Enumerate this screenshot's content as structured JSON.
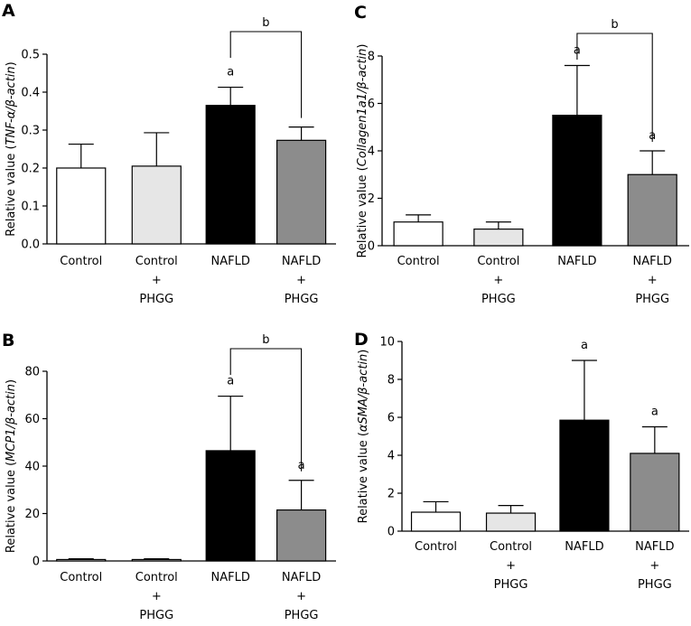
{
  "chart_data": [
    {
      "panel": "A",
      "type": "bar",
      "categories": [
        [
          "Control"
        ],
        [
          "Control",
          "+",
          "PHGG"
        ],
        [
          "NAFLD"
        ],
        [
          "NAFLD",
          "+",
          "PHGG"
        ]
      ],
      "values": [
        0.2,
        0.205,
        0.365,
        0.273
      ],
      "errors": [
        0.063,
        0.088,
        0.048,
        0.035
      ],
      "ylabel_prefix": "Relative value (",
      "ylabel_italic": "TNF-α/β-actin",
      "ylabel_suffix": ")",
      "ylim": [
        0,
        0.5
      ],
      "yticks": [
        0.0,
        0.1,
        0.2,
        0.3,
        0.4,
        0.5
      ],
      "ytick_labels": [
        "0.0",
        "0.1",
        "0.2",
        "0.3",
        "0.4",
        "0.5"
      ],
      "bar_colors": [
        "#ffffff",
        "#e6e6e6",
        "#000000",
        "#8c8c8c"
      ],
      "sig_labels": [
        "",
        "",
        "a",
        ""
      ],
      "bracket": {
        "from": 2,
        "to": 3,
        "label": "b"
      }
    },
    {
      "panel": "B",
      "type": "bar",
      "categories": [
        [
          "Control"
        ],
        [
          "Control",
          "+",
          "PHGG"
        ],
        [
          "NAFLD"
        ],
        [
          "NAFLD",
          "+",
          "PHGG"
        ]
      ],
      "values": [
        0.6,
        0.6,
        46.5,
        21.5
      ],
      "errors": [
        0.3,
        0.3,
        23.0,
        12.5
      ],
      "ylabel_prefix": "Relative value (",
      "ylabel_italic": "MCP1/β-actin",
      "ylabel_suffix": ")",
      "ylim": [
        0,
        80
      ],
      "yticks": [
        0,
        20,
        40,
        60,
        80
      ],
      "ytick_labels": [
        "0",
        "20",
        "40",
        "60",
        "80"
      ],
      "bar_colors": [
        "#ffffff",
        "#e6e6e6",
        "#000000",
        "#8c8c8c"
      ],
      "sig_labels": [
        "",
        "",
        "a",
        "a"
      ],
      "bracket": {
        "from": 2,
        "to": 3,
        "label": "b"
      }
    },
    {
      "panel": "C",
      "type": "bar",
      "categories": [
        [
          "Control"
        ],
        [
          "Control",
          "+",
          "PHGG"
        ],
        [
          "NAFLD"
        ],
        [
          "NAFLD",
          "+",
          "PHGG"
        ]
      ],
      "values": [
        1.0,
        0.7,
        5.5,
        3.0
      ],
      "errors": [
        0.3,
        0.3,
        2.1,
        1.0
      ],
      "ylabel_prefix": "Relative value (",
      "ylabel_italic": "Collagen1a1/β-actin",
      "ylabel_suffix": ")",
      "ylim": [
        0,
        8
      ],
      "yticks": [
        0,
        2,
        4,
        6,
        8
      ],
      "ytick_labels": [
        "0",
        "2",
        "4",
        "6",
        "8"
      ],
      "bar_colors": [
        "#ffffff",
        "#e6e6e6",
        "#000000",
        "#8c8c8c"
      ],
      "sig_labels": [
        "",
        "",
        "a",
        "a"
      ],
      "bracket": {
        "from": 2,
        "to": 3,
        "label": "b"
      }
    },
    {
      "panel": "D",
      "type": "bar",
      "categories": [
        [
          "Control"
        ],
        [
          "Control",
          "+",
          "PHGG"
        ],
        [
          "NAFLD"
        ],
        [
          "NAFLD",
          "+",
          "PHGG"
        ]
      ],
      "values": [
        1.0,
        0.95,
        5.85,
        4.1
      ],
      "errors": [
        0.55,
        0.4,
        3.15,
        1.4
      ],
      "ylabel_prefix": "Relative value (",
      "ylabel_italic": "αSMA/β-actin",
      "ylabel_suffix": ")",
      "ylim": [
        0,
        10
      ],
      "yticks": [
        0,
        2,
        4,
        6,
        8,
        10
      ],
      "ytick_labels": [
        "0",
        "2",
        "4",
        "6",
        "8",
        "10"
      ],
      "bar_colors": [
        "#ffffff",
        "#e6e6e6",
        "#000000",
        "#8c8c8c"
      ],
      "sig_labels": [
        "",
        "",
        "a",
        "a"
      ],
      "bracket": null
    }
  ]
}
